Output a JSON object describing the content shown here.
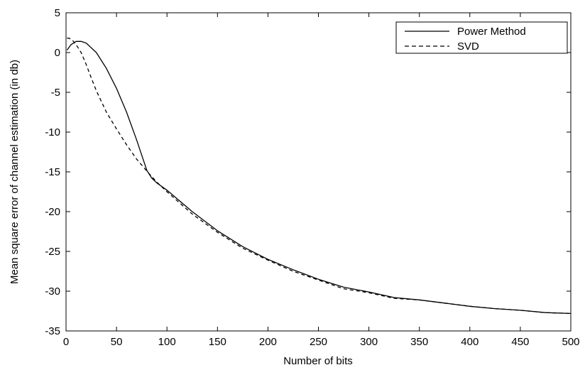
{
  "chart_data": {
    "type": "line",
    "title": "",
    "xlabel": "Number of bits",
    "ylabel": "Mean square error of channel estimation (in db)",
    "xlim": [
      0,
      500
    ],
    "ylim": [
      -35,
      5
    ],
    "xticks": [
      0,
      50,
      100,
      150,
      200,
      250,
      300,
      350,
      400,
      450,
      500
    ],
    "yticks": [
      5,
      0,
      -5,
      -10,
      -15,
      -20,
      -25,
      -30,
      -35
    ],
    "grid": false,
    "legend_position": "top-right",
    "series": [
      {
        "name": "Power Method",
        "style": "solid",
        "color": "#000000",
        "x": [
          1,
          5,
          10,
          15,
          20,
          30,
          40,
          50,
          60,
          70,
          80,
          85,
          90,
          100,
          125,
          150,
          175,
          200,
          225,
          250,
          275,
          300,
          325,
          350,
          375,
          400,
          425,
          450,
          475,
          500
        ],
        "y": [
          0.3,
          1.0,
          1.4,
          1.4,
          1.2,
          0.0,
          -2.0,
          -4.5,
          -7.5,
          -11.0,
          -14.8,
          -15.8,
          -16.4,
          -17.3,
          -20.0,
          -22.4,
          -24.4,
          -26.0,
          -27.3,
          -28.5,
          -29.5,
          -30.1,
          -30.8,
          -31.1,
          -31.5,
          -31.9,
          -32.2,
          -32.4,
          -32.7,
          -32.8
        ]
      },
      {
        "name": "SVD",
        "style": "dashed",
        "color": "#000000",
        "x": [
          1,
          3,
          6,
          10,
          15,
          20,
          25,
          30,
          40,
          50,
          60,
          70,
          80,
          90,
          100,
          125,
          150,
          175,
          200,
          225,
          250,
          275,
          300,
          325,
          350,
          375,
          400,
          425,
          450,
          475,
          500
        ],
        "y": [
          1.8,
          1.8,
          1.6,
          1.0,
          0.0,
          -1.5,
          -3.2,
          -4.8,
          -7.5,
          -9.6,
          -11.6,
          -13.4,
          -14.9,
          -16.3,
          -17.5,
          -20.3,
          -22.6,
          -24.6,
          -26.1,
          -27.5,
          -28.6,
          -29.7,
          -30.2,
          -30.9,
          -31.1,
          -31.5,
          -31.9,
          -32.2,
          -32.4,
          -32.7,
          -32.8
        ]
      }
    ]
  }
}
